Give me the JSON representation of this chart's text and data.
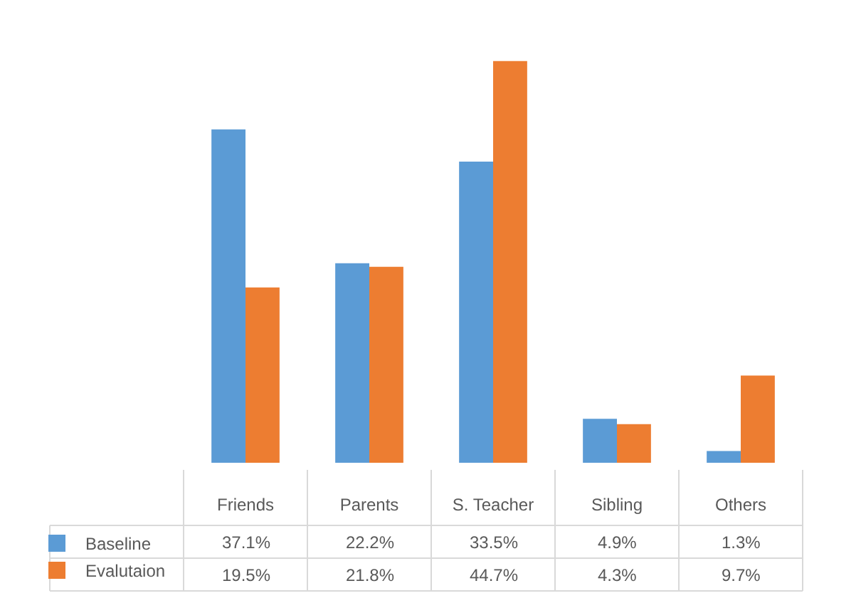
{
  "chart_data": {
    "type": "bar",
    "categories": [
      "Friends",
      "Parents",
      "S. Teacher",
      "Sibling",
      "Others"
    ],
    "series": [
      {
        "name": "Baseline",
        "color": "#5b9bd5",
        "values": [
          37.1,
          22.2,
          33.5,
          4.9,
          1.3
        ],
        "value_labels": [
          "37.1%",
          "22.2%",
          "33.5%",
          "4.9%",
          "1.3%"
        ]
      },
      {
        "name": "Evalutaion",
        "color": "#ed7d31",
        "values": [
          19.5,
          21.8,
          44.7,
          4.3,
          9.7
        ],
        "value_labels": [
          "19.5%",
          "21.8%",
          "44.7%",
          "4.3%",
          "9.7%"
        ]
      }
    ],
    "legend": "bottom left",
    "tick_labels": "x"
  }
}
